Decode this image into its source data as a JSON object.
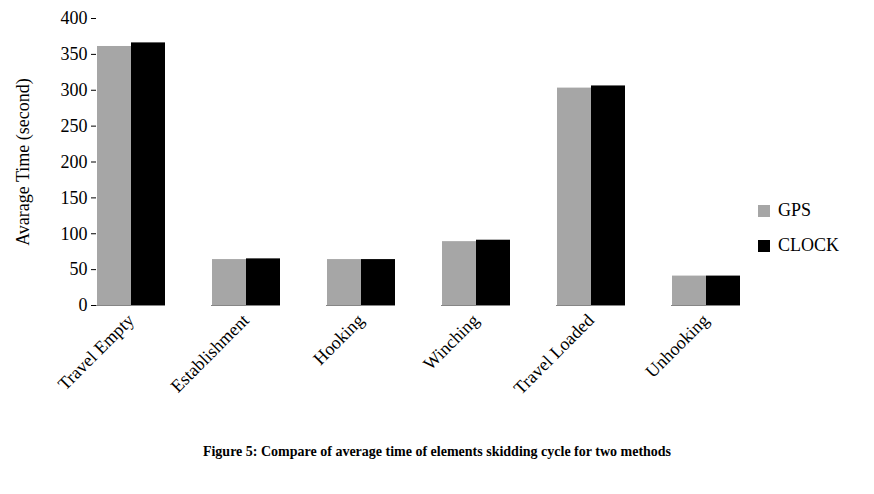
{
  "chart_data": {
    "type": "bar",
    "caption": "Figure 5: Compare of average time of elements skidding cycle for two methods",
    "y_label": "Avarage Time (second)",
    "categories": [
      "Travel Empty",
      "Establishment",
      "Hooking",
      "Winching",
      "Travel Loaded",
      "Unhooking"
    ],
    "series": [
      {
        "name": "GPS",
        "color": "#a6a6a6",
        "values": [
          361,
          64,
          64,
          89,
          303,
          41
        ]
      },
      {
        "name": "CLOCK",
        "color": "#000000",
        "values": [
          366,
          65,
          64,
          91,
          306,
          41
        ]
      }
    ],
    "ylim": [
      0,
      400
    ],
    "yticks": [
      0,
      50,
      100,
      150,
      200,
      250,
      300,
      350,
      400
    ],
    "grid": false,
    "legend": "right"
  }
}
